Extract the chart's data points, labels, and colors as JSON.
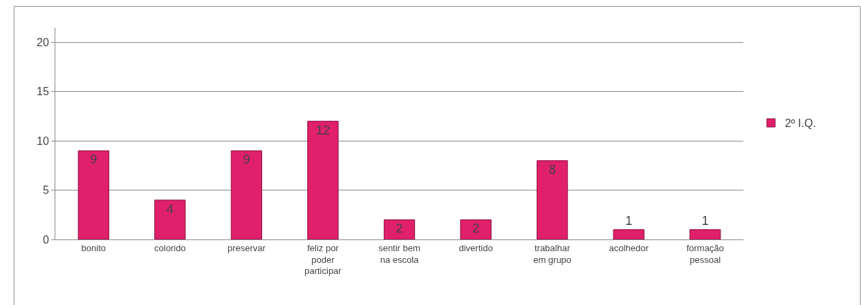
{
  "chart_data": {
    "type": "bar",
    "categories": [
      "bonito",
      "colorido",
      "preservar",
      "feliz por\npoder\nparticipar",
      "sentir bem\nna escola",
      "divertido",
      "trabalhar\nem grupo",
      "acolhedor",
      "formação\npessoal"
    ],
    "series": [
      {
        "name": "2º I.Q.",
        "color": "#e0206a",
        "values": [
          9,
          4,
          9,
          12,
          2,
          2,
          8,
          1,
          1
        ]
      }
    ],
    "ylim": [
      0,
      21.5
    ],
    "yticks": [
      0,
      5,
      10,
      15,
      20
    ],
    "grid": "y",
    "legend": "right",
    "data_labels": true
  }
}
